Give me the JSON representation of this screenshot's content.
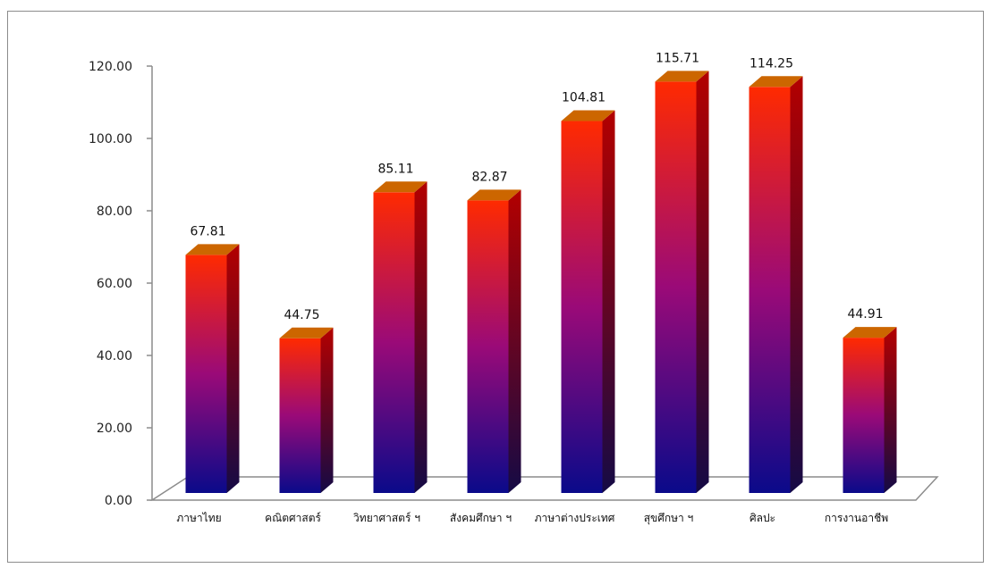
{
  "chart_data": {
    "type": "bar",
    "style": "3d-column",
    "title": "",
    "xlabel": "",
    "ylabel": "",
    "categories": [
      "ภาษาไทย",
      "คณิตศาสตร์",
      "วิทยาศาสตร์ ฯ",
      "สังคมศึกษา ฯ",
      "ภาษาต่างประเทศ",
      "สุขศึกษา ฯ",
      "ศิลปะ",
      "การงานอาชีพ"
    ],
    "values": [
      67.81,
      44.75,
      85.11,
      82.87,
      104.81,
      115.71,
      114.25,
      44.91
    ],
    "data_labels": [
      "67.81",
      "44.75",
      "85.11",
      "82.87",
      "104.81",
      "115.71",
      "114.25",
      "44.91"
    ],
    "ylim": [
      0,
      120
    ],
    "y_ticks": [
      "0.00",
      "20.00",
      "40.00",
      "60.00",
      "80.00",
      "100.00",
      "120.00"
    ],
    "grid": false,
    "legend": "none",
    "colors": {
      "bar_top": "#ff2a00",
      "bar_mid": "#9a0a78",
      "bar_bottom": "#0a0a8a",
      "cap_top": "#cc6600",
      "side_top": "#b30000",
      "side_bottom": "#150a45",
      "axis": "#8c8c8c"
    }
  }
}
